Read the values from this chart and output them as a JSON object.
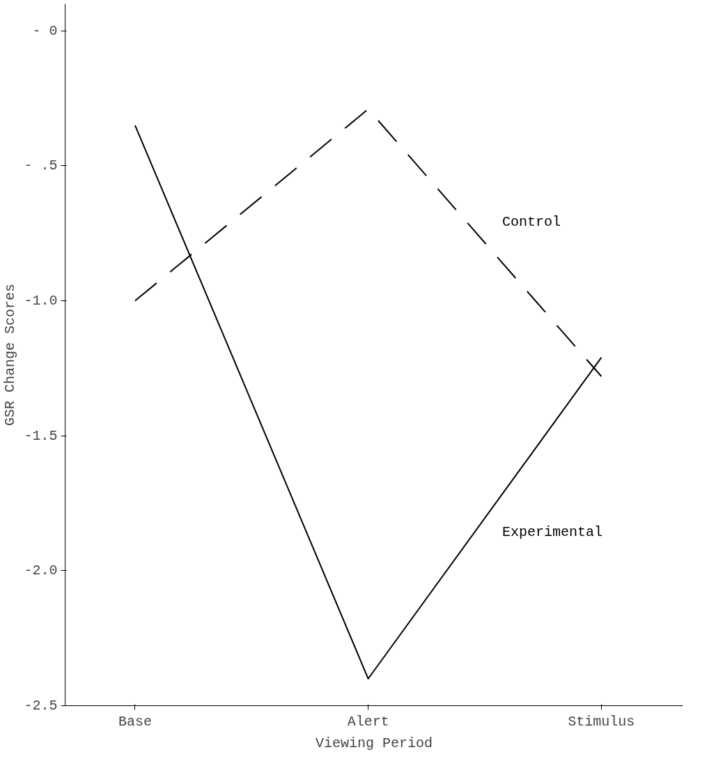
{
  "chart_data": {
    "type": "line",
    "xlabel": "Viewing Period",
    "ylabel": "GSR Change Scores",
    "categories": [
      "Base",
      "Alert",
      "Stimulus"
    ],
    "series": [
      {
        "name": "Control",
        "color": "#000000",
        "line_style": "dashed",
        "values": [
          -1.0,
          -0.29,
          -1.28
        ]
      },
      {
        "name": "Experimental",
        "color": "#000000",
        "line_style": "solid",
        "values": [
          -0.35,
          -2.4,
          -1.21
        ]
      }
    ],
    "ylim": [
      -2.5,
      0.1
    ],
    "yticks": [
      {
        "value": 0,
        "label": "- 0"
      },
      {
        "value": -0.5,
        "label": "- .5"
      },
      {
        "value": -1.0,
        "label": "-1.0"
      },
      -1.5,
      {
        "value": -2.0,
        "label": "-2.0"
      },
      -2.5
    ],
    "grid": false,
    "legend": false,
    "marker": "none"
  }
}
